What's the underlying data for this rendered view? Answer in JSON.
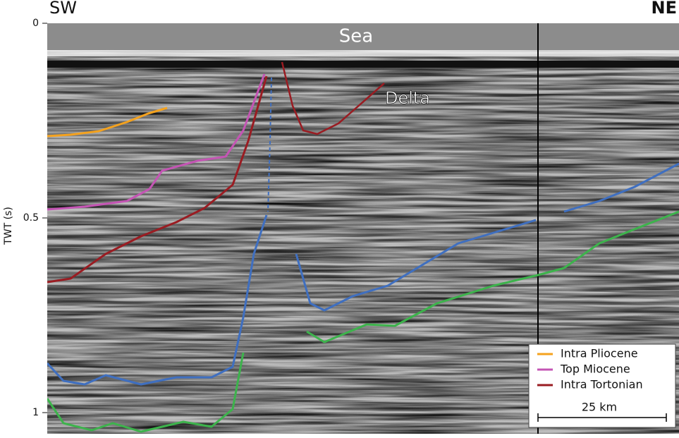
{
  "header": {
    "left": "SW",
    "right": "NE"
  },
  "labels": {
    "sea": "Sea",
    "delta": "Delta"
  },
  "axis": {
    "title": "TWT (s)",
    "ticks": [
      0,
      0.5,
      1
    ]
  },
  "legend": {
    "items": [
      {
        "name": "Intra Pliocene",
        "color": "#f4a21e"
      },
      {
        "name": "Top Miocene",
        "color": "#c455b4"
      },
      {
        "name": "Intra Tortonian",
        "color": "#9a1c22"
      }
    ]
  },
  "scale_bar": {
    "label": "25 km"
  }
}
